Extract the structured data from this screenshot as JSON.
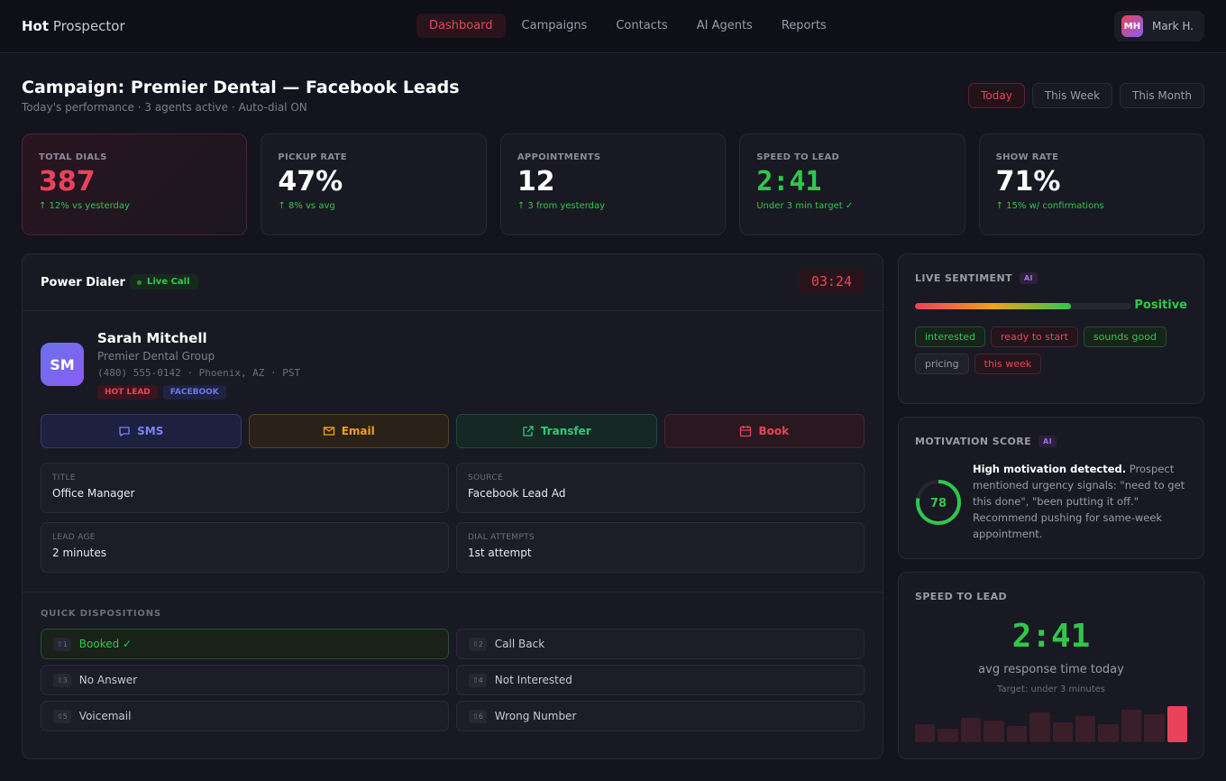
{
  "nav": {
    "brand_bold": "Hot",
    "brand_rest": "Prospector",
    "tabs": [
      "Dashboard",
      "Campaigns",
      "Contacts",
      "AI Agents",
      "Reports"
    ],
    "active_tab": "Dashboard",
    "user_initials": "MH",
    "user_name": "Mark H."
  },
  "header": {
    "title": "Campaign: Premier Dental — Facebook Leads",
    "subtitle": "Today's performance · 3 agents active · Auto-dial ON",
    "ranges": [
      "Today",
      "This Week",
      "This Month"
    ],
    "active_range": "Today"
  },
  "stats": [
    {
      "label": "TOTAL DIALS",
      "value": "387",
      "delta": "↑ 12% vs yesterday",
      "color": "#e8435a"
    },
    {
      "label": "PICKUP RATE",
      "value": "47%",
      "delta": "↑ 8% vs avg",
      "color": "#ffffff"
    },
    {
      "label": "APPOINTMENTS",
      "value": "12",
      "delta": "↑ 3 from yesterday",
      "color": "#ffffff"
    },
    {
      "label": "SPEED TO LEAD",
      "value": "2:41",
      "delta": "Under 3 min target ✓",
      "color": "#2fc84a"
    },
    {
      "label": "SHOW RATE",
      "value": "71%",
      "delta": "↑ 15% w/ confirmations",
      "color": "#ffffff"
    }
  ],
  "dialer": {
    "title": "Power Dialer",
    "status": "Live Call",
    "timer": "03:24",
    "contact": {
      "initials": "SM",
      "name": "Sarah Mitchell",
      "company": "Premier Dental Group",
      "phone_line": "(480) 555-0142 · Phoenix, AZ · PST",
      "badges": [
        "HOT LEAD",
        "FACEBOOK"
      ]
    },
    "actions": [
      {
        "label": "SMS",
        "icon": "message-icon"
      },
      {
        "label": "Email",
        "icon": "mail-icon"
      },
      {
        "label": "Transfer",
        "icon": "external-link-icon"
      },
      {
        "label": "Book",
        "icon": "calendar-icon"
      }
    ],
    "info": [
      {
        "label": "TITLE",
        "value": "Office Manager"
      },
      {
        "label": "SOURCE",
        "value": "Facebook Lead Ad"
      },
      {
        "label": "LEAD AGE",
        "value": "2 minutes"
      },
      {
        "label": "DIAL ATTEMPTS",
        "value": "1st attempt"
      }
    ],
    "dispositions_title": "QUICK DISPOSITIONS",
    "dispositions": [
      {
        "key": "⇧1",
        "label": "Booked ✓",
        "selected": true
      },
      {
        "key": "⇧2",
        "label": "Call Back"
      },
      {
        "key": "⇧3",
        "label": "No Answer"
      },
      {
        "key": "⇧4",
        "label": "Not Interested"
      },
      {
        "key": "⇧5",
        "label": "Voicemail"
      },
      {
        "key": "⇧6",
        "label": "Wrong Number"
      }
    ]
  },
  "sentiment": {
    "title": "LIVE SENTIMENT",
    "ai": "AI",
    "level_percent": 72,
    "label": "Positive",
    "tags": [
      {
        "text": "interested",
        "tone": "green"
      },
      {
        "text": "ready to start",
        "tone": "red"
      },
      {
        "text": "sounds good",
        "tone": "green"
      },
      {
        "text": "pricing",
        "tone": "gray"
      },
      {
        "text": "this week",
        "tone": "red"
      }
    ]
  },
  "motivation": {
    "title": "MOTIVATION SCORE",
    "ai": "AI",
    "score": "78",
    "score_percent": 78,
    "headline": "High motivation detected.",
    "body": " Prospect mentioned urgency signals: \"need to get this done\", \"been putting it off.\" Recommend pushing for same-week appointment."
  },
  "speed": {
    "title": "SPEED TO LEAD",
    "value": "2:41",
    "caption": "avg response time today",
    "target": "Target: under 3 minutes",
    "bars_relative": [
      50,
      38,
      67,
      61,
      44,
      83,
      56,
      72,
      50,
      89,
      78,
      100
    ]
  }
}
